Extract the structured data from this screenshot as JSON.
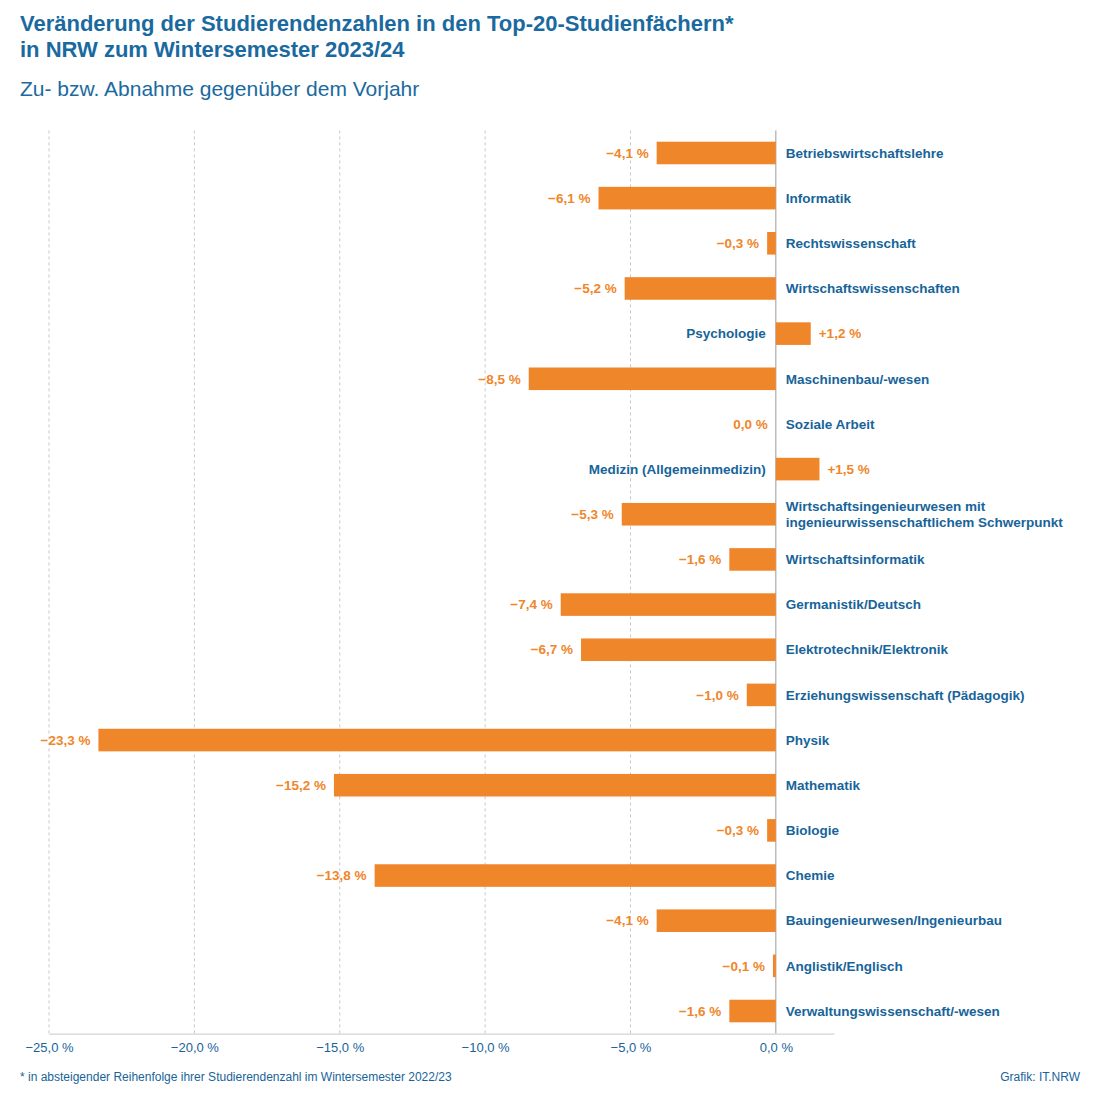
{
  "chart_data": {
    "type": "bar",
    "orientation": "horizontal",
    "title": [
      "Veränderung der Studierendenzahlen in den Top-20-Studienfächern*",
      "in NRW zum Wintersemester 2023/24"
    ],
    "subtitle": "Zu- bzw. Abnahme gegenüber dem Vorjahr",
    "annotations": [
      "* in absteigender Reihenfolge ihrer Studierendenzahl im Wintersemester 2022/23",
      "Grafik: IT.NRW"
    ],
    "categories": [
      "Betriebswirtschaftslehre",
      "Informatik",
      "Rechtswissenschaft",
      "Wirtschaftswissenschaften",
      "Psychologie",
      "Maschinenbau/-wesen",
      "Soziale Arbeit",
      "Medizin (Allgemeinmedizin)",
      "Wirtschaftsingenieurwesen mit ingenieurwissenschaftlichem Schwerpunkt",
      "Wirtschaftsinformatik",
      "Germanistik/Deutsch",
      "Elektrotechnik/Elektronik",
      "Erziehungswissenschaft (Pädagogik)",
      "Physik",
      "Mathematik",
      "Biologie",
      "Chemie",
      "Bauingenieurwesen/Ingenieurbau",
      "Anglistik/Englisch",
      "Verwaltungswissenschaft/-wesen"
    ],
    "values": [
      -4.1,
      -6.1,
      -0.3,
      -5.2,
      1.2,
      -8.5,
      0.0,
      1.5,
      -5.3,
      -1.6,
      -7.4,
      -6.7,
      -1.0,
      -23.3,
      -15.2,
      -0.3,
      -13.8,
      -4.1,
      -0.1,
      -1.6
    ],
    "value_labels": [
      "−4,1 %",
      "−6,1 %",
      "−0,3 %",
      "−5,2 %",
      "+1,2 %",
      "−8,5 %",
      "0,0 %",
      "+1,5 %",
      "−5,3 %",
      "−1,6 %",
      "−7,4 %",
      "−6,7 %",
      "−1,0 %",
      "−23,3 %",
      "−15,2 %",
      "−0,3 %",
      "−13,8 %",
      "−4,1 %",
      "−0,1 %",
      "−1,6 %"
    ],
    "color": "#f0862a",
    "data_labels": true,
    "grid": true,
    "xlim": [
      -25,
      2
    ],
    "xticks": [
      {
        "value": -25,
        "label": "−25,0 %"
      },
      {
        "value": -20,
        "label": "−20,0 %"
      },
      {
        "value": -15,
        "label": "−15,0 %"
      },
      {
        "value": -10,
        "label": "−10,0 %"
      },
      {
        "value": -5,
        "label": "−5,0 %"
      },
      {
        "value": 0,
        "label": "0,0 %"
      }
    ]
  }
}
